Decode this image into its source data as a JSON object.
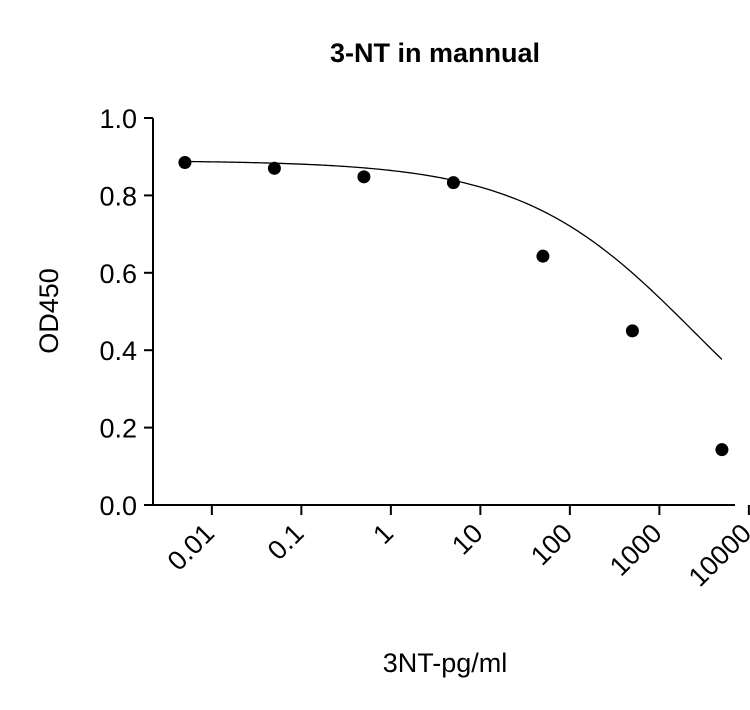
{
  "chart_data": {
    "type": "scatter",
    "title": "3-NT in mannual",
    "xlabel": "3NT-pg/ml",
    "ylabel": "OD450",
    "xscale": "log",
    "xlim": [
      0.0022,
      7000
    ],
    "ylim": [
      0,
      1.0
    ],
    "xticks": [
      {
        "value": 0.01,
        "label": "0.01"
      },
      {
        "value": 0.1,
        "label": "0.1"
      },
      {
        "value": 1,
        "label": "1"
      },
      {
        "value": 10,
        "label": "10"
      },
      {
        "value": 100,
        "label": "100"
      },
      {
        "value": 1000,
        "label": "1000"
      },
      {
        "value": 10000,
        "label": "10000"
      }
    ],
    "yticks": [
      {
        "value": 0.0,
        "label": "0.0"
      },
      {
        "value": 0.2,
        "label": "0.2"
      },
      {
        "value": 0.4,
        "label": "0.4"
      },
      {
        "value": 0.6,
        "label": "0.6"
      },
      {
        "value": 0.8,
        "label": "0.8"
      },
      {
        "value": 1.0,
        "label": "1.0"
      }
    ],
    "points": {
      "x": [
        0.005,
        0.05,
        0.5,
        5,
        50,
        500,
        5000
      ],
      "y": [
        0.885,
        0.87,
        0.848,
        0.833,
        0.643,
        0.45,
        0.143
      ]
    },
    "fit_curve": {
      "type": "four-parameter-logistic",
      "top": 0.89,
      "bottom": 0.0,
      "ec50": 2500,
      "hill": 0.45
    },
    "grid": false,
    "legend": "none"
  }
}
